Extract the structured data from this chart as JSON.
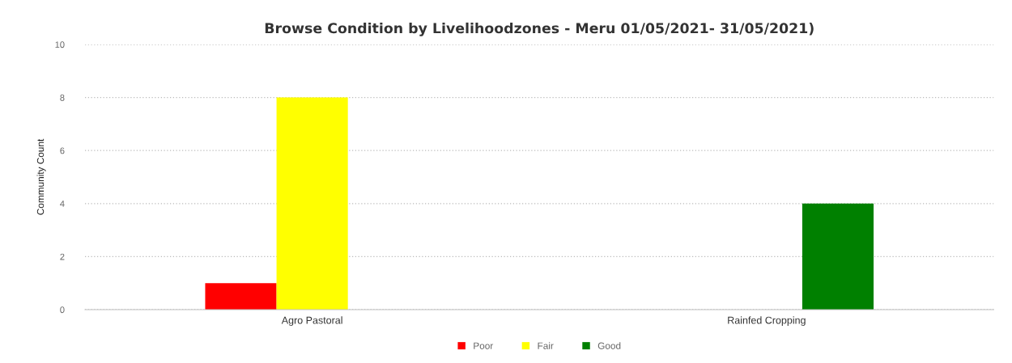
{
  "chart_data": {
    "type": "bar",
    "title": "Browse Condition by Livelihoodzones - Meru 01/05/2021- 31/05/2021)",
    "ylabel": "Community Count",
    "categories": [
      "Agro Pastoral",
      "Rainfed Cropping"
    ],
    "series": [
      {
        "name": "Poor",
        "color": "#ff0000",
        "values": [
          1,
          null
        ]
      },
      {
        "name": "Fair",
        "color": "#ffff00",
        "values": [
          8,
          null
        ]
      },
      {
        "name": "Good",
        "color": "#008000",
        "values": [
          null,
          4
        ]
      }
    ],
    "ylim": [
      0,
      10
    ],
    "yticks": [
      0,
      2,
      4,
      6,
      8,
      10
    ],
    "grid": "y",
    "legend": "bottom"
  }
}
